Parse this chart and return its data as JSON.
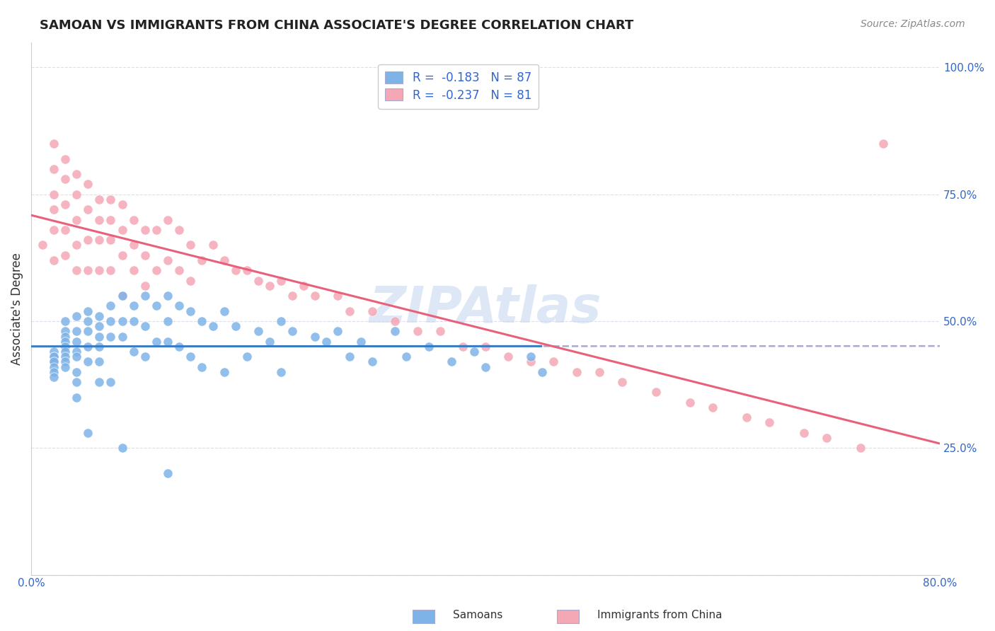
{
  "title": "SAMOAN VS IMMIGRANTS FROM CHINA ASSOCIATE'S DEGREE CORRELATION CHART",
  "source": "Source: ZipAtlas.com",
  "ylabel": "Associate's Degree",
  "legend_entry1": "R =  -0.183   N = 87",
  "legend_entry2": "R =  -0.237   N = 81",
  "legend_label1": "Samoans",
  "legend_label2": "Immigrants from China",
  "color_blue": "#7EB3E8",
  "color_pink": "#F4A7B5",
  "color_blue_line": "#3A7CC4",
  "color_pink_line": "#E8607A",
  "color_dashed": "#AAAACC",
  "background": "#FFFFFF",
  "grid_color": "#DDDDEE",
  "watermark_color": "#C8D8F0",
  "xmin": 0.0,
  "xmax": 0.8,
  "ymin": 0.0,
  "ymax": 1.05,
  "samoans_x": [
    0.02,
    0.02,
    0.02,
    0.02,
    0.02,
    0.02,
    0.02,
    0.02,
    0.03,
    0.03,
    0.03,
    0.03,
    0.03,
    0.03,
    0.03,
    0.03,
    0.03,
    0.04,
    0.04,
    0.04,
    0.04,
    0.04,
    0.04,
    0.04,
    0.04,
    0.05,
    0.05,
    0.05,
    0.05,
    0.05,
    0.05,
    0.06,
    0.06,
    0.06,
    0.06,
    0.06,
    0.06,
    0.07,
    0.07,
    0.07,
    0.07,
    0.08,
    0.08,
    0.08,
    0.08,
    0.09,
    0.09,
    0.09,
    0.1,
    0.1,
    0.1,
    0.11,
    0.11,
    0.12,
    0.12,
    0.12,
    0.12,
    0.13,
    0.13,
    0.14,
    0.14,
    0.15,
    0.15,
    0.16,
    0.17,
    0.17,
    0.18,
    0.19,
    0.2,
    0.21,
    0.22,
    0.22,
    0.23,
    0.25,
    0.26,
    0.27,
    0.28,
    0.29,
    0.3,
    0.32,
    0.33,
    0.35,
    0.37,
    0.39,
    0.4,
    0.44,
    0.45
  ],
  "samoans_y": [
    0.44,
    0.43,
    0.43,
    0.42,
    0.42,
    0.41,
    0.4,
    0.39,
    0.5,
    0.48,
    0.47,
    0.46,
    0.45,
    0.44,
    0.43,
    0.42,
    0.41,
    0.51,
    0.48,
    0.46,
    0.44,
    0.43,
    0.4,
    0.38,
    0.35,
    0.52,
    0.5,
    0.48,
    0.45,
    0.42,
    0.28,
    0.51,
    0.49,
    0.47,
    0.45,
    0.42,
    0.38,
    0.53,
    0.5,
    0.47,
    0.38,
    0.55,
    0.5,
    0.47,
    0.25,
    0.53,
    0.5,
    0.44,
    0.55,
    0.49,
    0.43,
    0.53,
    0.46,
    0.55,
    0.5,
    0.46,
    0.2,
    0.53,
    0.45,
    0.52,
    0.43,
    0.5,
    0.41,
    0.49,
    0.52,
    0.4,
    0.49,
    0.43,
    0.48,
    0.46,
    0.5,
    0.4,
    0.48,
    0.47,
    0.46,
    0.48,
    0.43,
    0.46,
    0.42,
    0.48,
    0.43,
    0.45,
    0.42,
    0.44,
    0.41,
    0.43,
    0.4
  ],
  "china_x": [
    0.01,
    0.02,
    0.02,
    0.02,
    0.02,
    0.02,
    0.02,
    0.03,
    0.03,
    0.03,
    0.03,
    0.03,
    0.04,
    0.04,
    0.04,
    0.04,
    0.04,
    0.05,
    0.05,
    0.05,
    0.05,
    0.06,
    0.06,
    0.06,
    0.06,
    0.07,
    0.07,
    0.07,
    0.07,
    0.08,
    0.08,
    0.08,
    0.08,
    0.09,
    0.09,
    0.09,
    0.1,
    0.1,
    0.1,
    0.11,
    0.11,
    0.12,
    0.12,
    0.13,
    0.13,
    0.14,
    0.14,
    0.15,
    0.16,
    0.17,
    0.18,
    0.19,
    0.2,
    0.21,
    0.22,
    0.23,
    0.24,
    0.25,
    0.27,
    0.28,
    0.3,
    0.32,
    0.34,
    0.36,
    0.38,
    0.4,
    0.42,
    0.44,
    0.46,
    0.48,
    0.5,
    0.52,
    0.55,
    0.58,
    0.6,
    0.63,
    0.65,
    0.68,
    0.7,
    0.73,
    0.75
  ],
  "china_y": [
    0.65,
    0.85,
    0.8,
    0.75,
    0.72,
    0.68,
    0.62,
    0.82,
    0.78,
    0.73,
    0.68,
    0.63,
    0.79,
    0.75,
    0.7,
    0.65,
    0.6,
    0.77,
    0.72,
    0.66,
    0.6,
    0.74,
    0.7,
    0.66,
    0.6,
    0.74,
    0.7,
    0.66,
    0.6,
    0.73,
    0.68,
    0.63,
    0.55,
    0.7,
    0.65,
    0.6,
    0.68,
    0.63,
    0.57,
    0.68,
    0.6,
    0.7,
    0.62,
    0.68,
    0.6,
    0.65,
    0.58,
    0.62,
    0.65,
    0.62,
    0.6,
    0.6,
    0.58,
    0.57,
    0.58,
    0.55,
    0.57,
    0.55,
    0.55,
    0.52,
    0.52,
    0.5,
    0.48,
    0.48,
    0.45,
    0.45,
    0.43,
    0.42,
    0.42,
    0.4,
    0.4,
    0.38,
    0.36,
    0.34,
    0.33,
    0.31,
    0.3,
    0.28,
    0.27,
    0.25,
    0.85
  ]
}
